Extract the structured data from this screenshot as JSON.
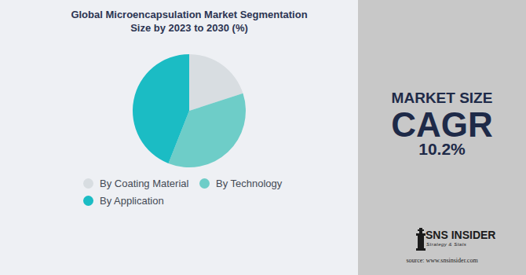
{
  "chart_data": {
    "type": "pie",
    "title": "Global Microencapsulation Market Segmentation Size by 2023 to 2030 (%)",
    "categories": [
      "By Coating Material",
      "By Technology",
      "By Application"
    ],
    "values": [
      20,
      36,
      44
    ],
    "colors": [
      "#d8dde1",
      "#6ecdc8",
      "#1bbcc4"
    ],
    "legend": "bottom",
    "data_labels": false,
    "annotations": {
      "heading": "MARKET SIZE",
      "metric": "CAGR",
      "metric_value": {
        "value": 10.2,
        "label": "10.2%"
      },
      "brand": "SNS INSIDER",
      "tagline": "Strategy & Stats",
      "source": "source: www.snsinsider.com"
    }
  }
}
